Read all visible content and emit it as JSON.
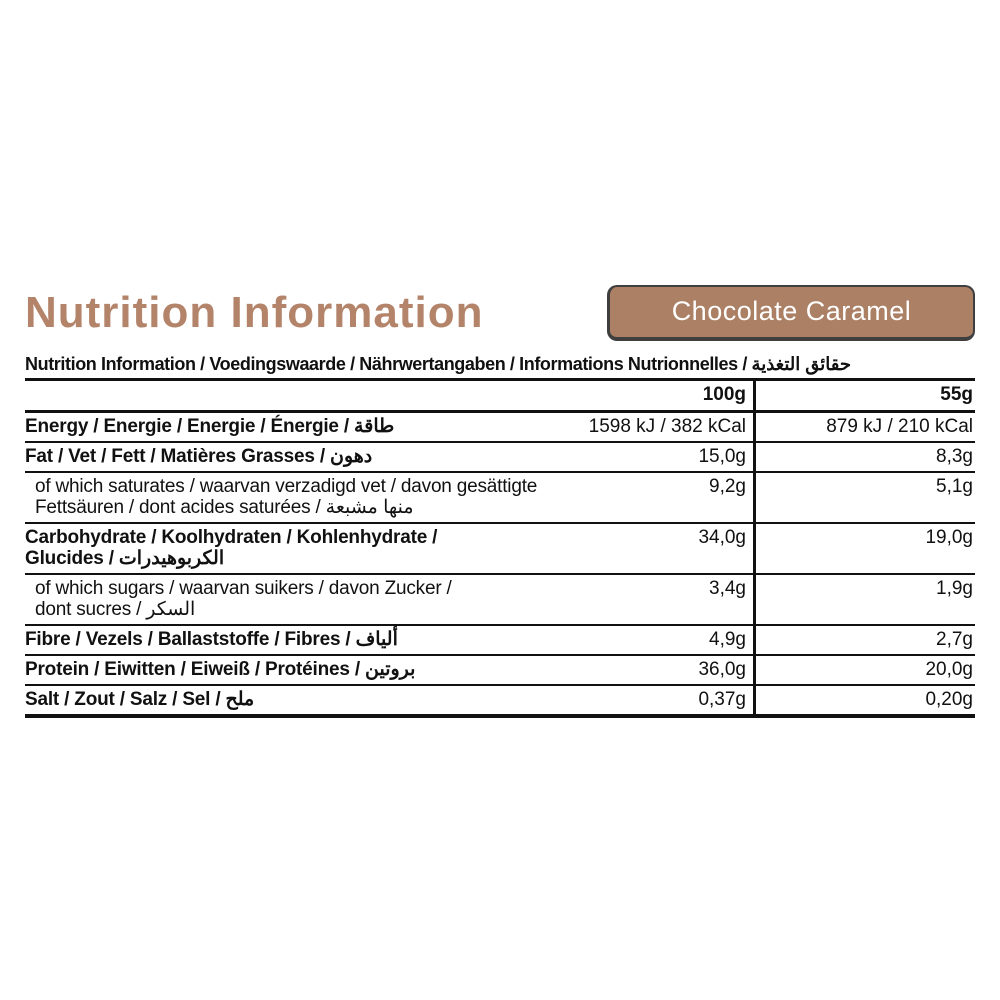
{
  "colors": {
    "accent": "#b3846a",
    "badge_bg": "#ab8065",
    "badge_border": "#3f3f3f",
    "text": "#111111"
  },
  "header": {
    "title": "Nutrition Information",
    "flavor": "Chocolate Caramel"
  },
  "table": {
    "header": "Nutrition Information / Voedingswaarde / Nährwertangaben / Informations Nutrionnelles / حقائق التغذية",
    "columns": [
      "100g",
      "55g"
    ],
    "rows": [
      {
        "label": "Energy / Energie / Energie / Énergie / طاقة",
        "per100": "1598 kJ / 382 kCal",
        "per55": "879 kJ / 210 kCal"
      },
      {
        "label": "Fat / Vet / Fett / Matières Grasses / دهون",
        "per100": "15,0g",
        "per55": "8,3g"
      },
      {
        "label": [
          "of which saturates / waarvan verzadigd vet / davon gesättigte",
          "Fettsäuren / dont acides saturées / منها مشبعة"
        ],
        "per100": "9,2g",
        "per55": "5,1g"
      },
      {
        "label": [
          "Carbohydrate / Koolhydraten / Kohlenhydrate /",
          "Glucides / الكربوهيدرات"
        ],
        "per100": "34,0g",
        "per55": "19,0g"
      },
      {
        "label": [
          "of which sugars / waarvan suikers / davon Zucker /",
          "dont sucres / السكر"
        ],
        "per100": "3,4g",
        "per55": "1,9g"
      },
      {
        "label": "Fibre / Vezels / Ballaststoffe / Fibres / ألياف",
        "per100": "4,9g",
        "per55": "2,7g"
      },
      {
        "label": "Protein / Eiwitten / Eiweiß / Protéines / بروتين",
        "per100": "36,0g",
        "per55": "20,0g"
      },
      {
        "label": "Salt / Zout / Salz / Sel / ملح",
        "per100": "0,37g",
        "per55": "0,20g"
      }
    ]
  }
}
